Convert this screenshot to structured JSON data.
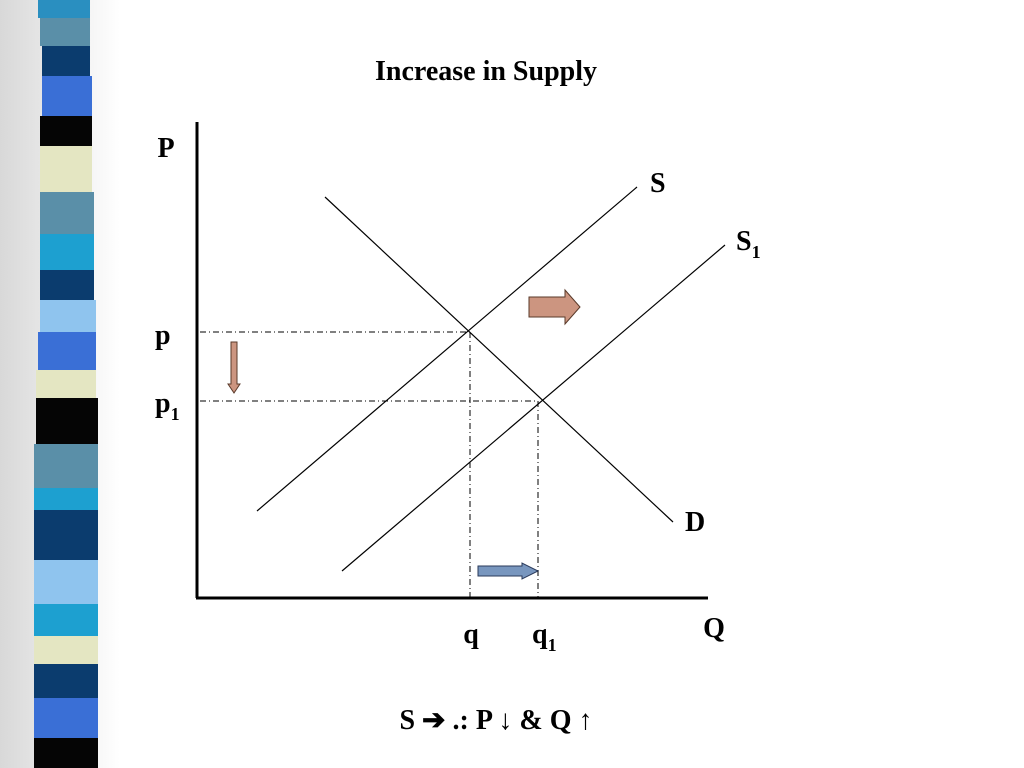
{
  "title": "Increase in Supply",
  "axes": {
    "y_label": "P",
    "x_label": "Q"
  },
  "curves": {
    "supply": "S",
    "supply_new": {
      "text": "S",
      "sub": "1"
    },
    "demand": "D"
  },
  "prices": {
    "p": "p",
    "p1": {
      "text": "p",
      "sub": "1"
    }
  },
  "quantities": {
    "q": "q",
    "q1": {
      "text": "q",
      "sub": "1"
    }
  },
  "caption": "S ➔ .: P ↓ & Q ↑"
}
